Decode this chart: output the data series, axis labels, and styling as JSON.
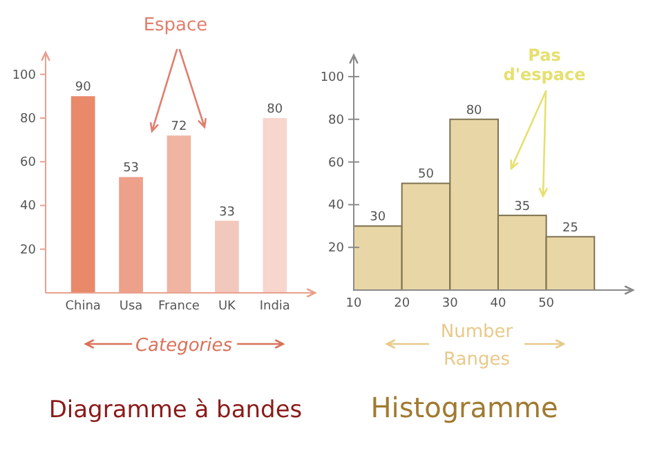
{
  "chart_data": [
    {
      "type": "bar",
      "title": "Diagramme à bandes",
      "xlabel": "Categories",
      "annotations": [
        "Espace"
      ],
      "categories": [
        "China",
        "Usa",
        "France",
        "UK",
        "India"
      ],
      "values": [
        90,
        53,
        72,
        33,
        80
      ],
      "colors": [
        "#e8896a",
        "#eda08a",
        "#efb4a2",
        "#f3c8bc",
        "#f6d6cd"
      ],
      "ylim": [
        0,
        110
      ],
      "yticks": [
        20,
        40,
        60,
        80,
        100
      ],
      "data_labels": true
    },
    {
      "type": "histogram",
      "title": "Histogramme",
      "xlabel": "Number Ranges",
      "annotations": [
        "Pas d'espace"
      ],
      "bins": [
        10,
        20,
        30,
        40,
        50,
        60
      ],
      "values": [
        30,
        50,
        80,
        35,
        25
      ],
      "color": "#e8d6a6",
      "xlim": [
        10,
        68
      ],
      "xticks": [
        10,
        20,
        30,
        40,
        50
      ],
      "ylim": [
        0,
        110
      ],
      "yticks": [
        20,
        40,
        60,
        80,
        100
      ],
      "data_labels": true
    }
  ]
}
